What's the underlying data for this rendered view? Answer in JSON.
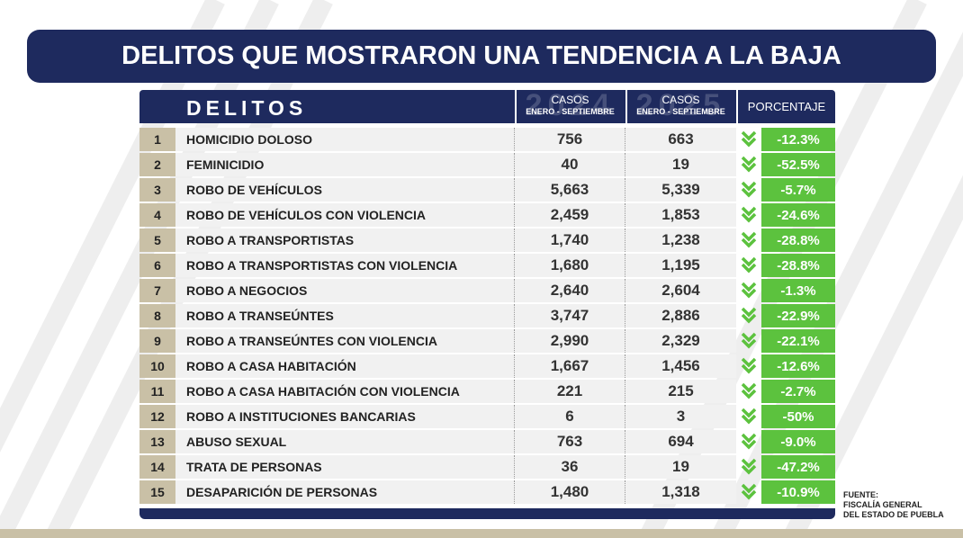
{
  "header": {
    "title": "DELITOS QUE MOSTRARON UNA TENDENCIA A LA BAJA"
  },
  "table": {
    "columns": {
      "crime": "DELITOS",
      "year1": "2024",
      "year2": "2025",
      "cases1": "CASOS",
      "period1": "ENERO - SEPTIEMBRE",
      "cases2": "CASOS",
      "period2": "ENERO - SEPTIEMBRE",
      "percent": "PORCENTAJE"
    },
    "rows": [
      [
        "1",
        "HOMICIDIO DOLOSO",
        "756",
        "663",
        "-12.3%"
      ],
      [
        "2",
        "FEMINICIDIO",
        "40",
        "19",
        "-52.5%"
      ],
      [
        "3",
        "ROBO DE VEHÍCULOS",
        "5,663",
        "5,339",
        "-5.7%"
      ],
      [
        "4",
        "ROBO DE VEHÍCULOS CON VIOLENCIA",
        "2,459",
        "1,853",
        "-24.6%"
      ],
      [
        "5",
        "ROBO A TRANSPORTISTAS",
        "1,740",
        "1,238",
        "-28.8%"
      ],
      [
        "6",
        "ROBO A TRANSPORTISTAS CON VIOLENCIA",
        "1,680",
        "1,195",
        "-28.8%"
      ],
      [
        "7",
        "ROBO A NEGOCIOS",
        "2,640",
        "2,604",
        "-1.3%"
      ],
      [
        "8",
        "ROBO A TRANSEÚNTES",
        "3,747",
        "2,886",
        "-22.9%"
      ],
      [
        "9",
        "ROBO A TRANSEÚNTES CON VIOLENCIA",
        "2,990",
        "2,329",
        "-22.1%"
      ],
      [
        "10",
        "ROBO A CASA HABITACIÓN",
        "1,667",
        "1,456",
        "-12.6%"
      ],
      [
        "11",
        "ROBO A CASA HABITACIÓN CON VIOLENCIA",
        "221",
        "215",
        "-2.7%"
      ],
      [
        "12",
        "ROBO A INSTITUCIONES BANCARIAS",
        "6",
        "3",
        "-50%"
      ],
      [
        "13",
        "ABUSO SEXUAL",
        "763",
        "694",
        "-9.0%"
      ],
      [
        "14",
        "TRATA DE PERSONAS",
        "36",
        "19",
        "-47.2%"
      ],
      [
        "15",
        "DESAPARICIÓN DE PERSONAS",
        "1,480",
        "1,318",
        "-10.9%"
      ]
    ]
  },
  "footer": {
    "source": [
      "FUENTE:",
      "FISCALÍA GENERAL",
      "DEL ESTADO DE PUEBLA"
    ]
  }
}
